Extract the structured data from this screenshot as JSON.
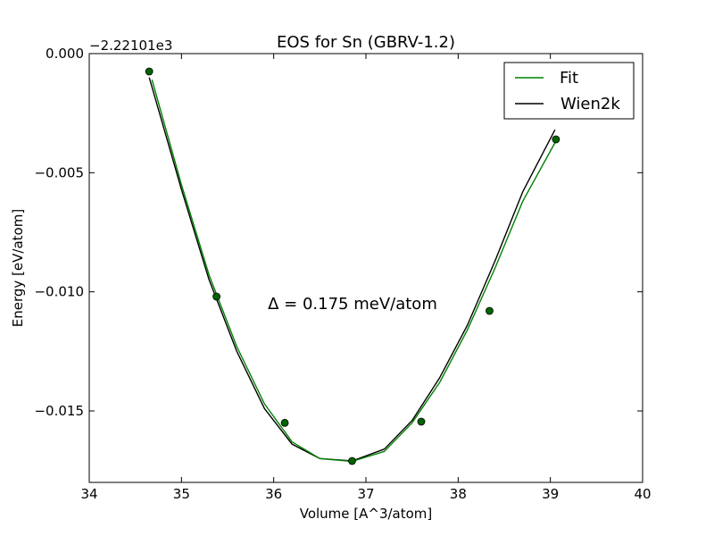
{
  "chart_data": {
    "type": "line",
    "title": "EOS for Sn (GBRV-1.2)",
    "xlabel": "Volume [A^3/atom]",
    "ylabel": "Energy [eV/atom]",
    "y_offset_label": "−2.22101e3",
    "xlim": [
      34,
      40
    ],
    "ylim": [
      -0.018,
      0.0
    ],
    "x_ticks": [
      34,
      35,
      36,
      37,
      38,
      39,
      40
    ],
    "x_tick_labels": [
      "34",
      "35",
      "36",
      "37",
      "38",
      "39",
      "40"
    ],
    "y_ticks": [
      0.0,
      -0.005,
      -0.01,
      -0.015
    ],
    "y_tick_labels": [
      "0.000",
      "−0.005",
      "−0.010",
      "−0.015"
    ],
    "grid": false,
    "legend_position": "top-right",
    "annotation": "Δ = 0.175 meV/atom",
    "points": {
      "x": [
        34.65,
        35.38,
        36.12,
        36.85,
        37.6,
        38.34,
        39.06
      ],
      "y": [
        -0.00075,
        -0.0102,
        -0.0155,
        -0.0171,
        -0.01545,
        -0.0108,
        -0.0036
      ],
      "color": "#006400"
    },
    "series": [
      {
        "name": "Fit",
        "color": "#008000",
        "x": [
          34.68,
          35.0,
          35.3,
          35.6,
          35.9,
          36.2,
          36.5,
          36.85,
          37.2,
          37.5,
          37.8,
          38.1,
          38.4,
          38.7,
          39.07
        ],
        "y": [
          -0.0011,
          -0.0055,
          -0.0093,
          -0.0123,
          -0.0147,
          -0.0163,
          -0.017,
          -0.01712,
          -0.0167,
          -0.0155,
          -0.0138,
          -0.0116,
          -0.009,
          -0.0062,
          -0.0036
        ]
      },
      {
        "name": "Wien2k",
        "color": "#000000",
        "x": [
          34.65,
          35.0,
          35.3,
          35.6,
          35.9,
          36.2,
          36.5,
          36.85,
          37.2,
          37.5,
          37.8,
          38.1,
          38.4,
          38.7,
          39.05
        ],
        "y": [
          -0.001,
          -0.0057,
          -0.0095,
          -0.0125,
          -0.0149,
          -0.0164,
          -0.017,
          -0.0171,
          -0.0166,
          -0.0154,
          -0.0136,
          -0.0114,
          -0.0087,
          -0.0058,
          -0.0032
        ]
      }
    ]
  }
}
